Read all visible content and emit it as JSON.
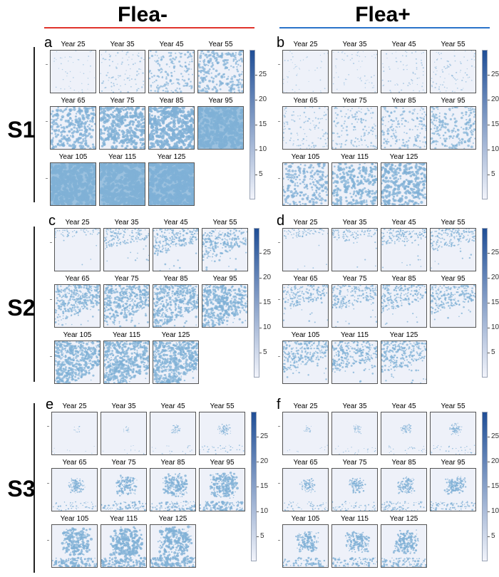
{
  "column_headers": [
    {
      "text": "Flea-",
      "rule_color": "#e0332c"
    },
    {
      "text": "Flea+",
      "rule_color": "#2a73c9"
    }
  ],
  "scenarios": [
    "S1",
    "S2",
    "S3"
  ],
  "panel_letters": [
    "a",
    "b",
    "c",
    "d",
    "e",
    "f"
  ],
  "years": [
    "Year 25",
    "Year 35",
    "Year 45",
    "Year 55",
    "Year 65",
    "Year 75",
    "Year 85",
    "Year 95",
    "Year 105",
    "Year 115",
    "Year 125"
  ],
  "colorbar": {
    "ticks": [
      "5",
      "10",
      "15",
      "20",
      "25"
    ],
    "range": [
      0,
      30
    ],
    "low_color": "#f2f4fb",
    "high_color": "#1f4e96"
  },
  "dot_color": "#7fb0d6",
  "background_color": "#eef1f9",
  "pattern_types": [
    "random",
    "random",
    "gradient",
    "gradient",
    "clustered",
    "clustered"
  ],
  "cover_levels": {
    "a": [
      0.02,
      0.15,
      0.33,
      0.48,
      0.6,
      0.7,
      0.8,
      0.86,
      0.93,
      0.95,
      0.97
    ],
    "b": [
      0.02,
      0.05,
      0.08,
      0.12,
      0.18,
      0.25,
      0.33,
      0.42,
      0.5,
      0.57,
      0.64
    ],
    "c": [
      0.15,
      0.28,
      0.36,
      0.44,
      0.52,
      0.58,
      0.62,
      0.66,
      0.7,
      0.73,
      0.76
    ],
    "d": [
      0.14,
      0.2,
      0.26,
      0.32,
      0.34,
      0.36,
      0.38,
      0.4,
      0.42,
      0.44,
      0.46
    ],
    "e": [
      0.01,
      0.03,
      0.12,
      0.22,
      0.35,
      0.5,
      0.62,
      0.72,
      0.8,
      0.85,
      0.88
    ],
    "f": [
      0.05,
      0.1,
      0.16,
      0.22,
      0.3,
      0.36,
      0.42,
      0.48,
      0.54,
      0.58,
      0.62
    ]
  }
}
